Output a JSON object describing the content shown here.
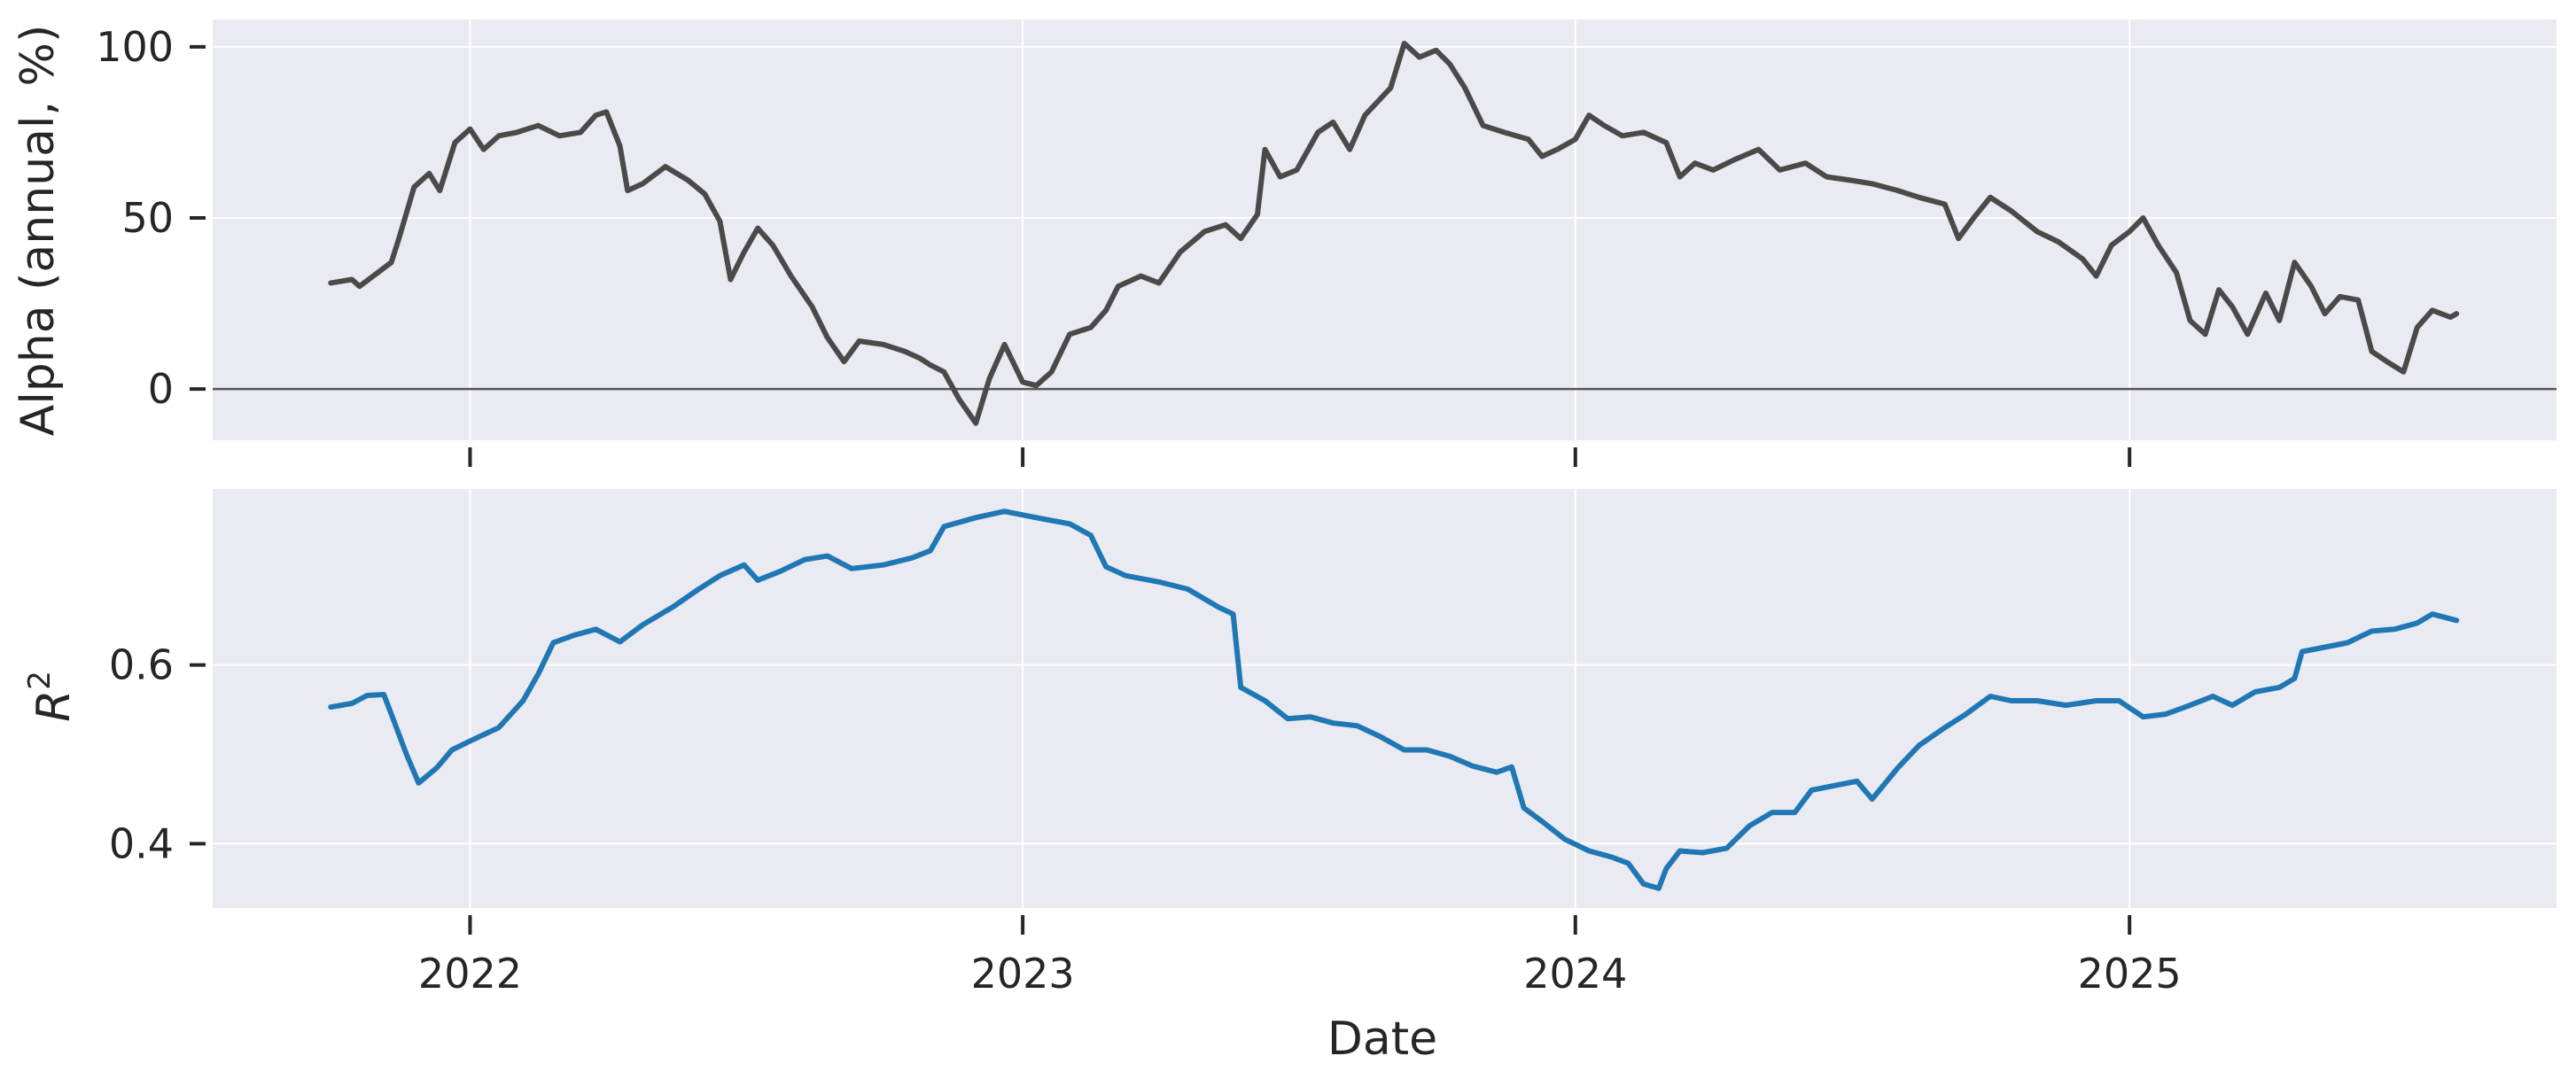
{
  "chart_data": [
    {
      "type": "line",
      "ylabel": "Alpha (annual, %)",
      "xlabel": "",
      "yticks": [
        0,
        50,
        100
      ],
      "ylim": [
        -15,
        108
      ],
      "xlim": [
        "2021-07-15",
        "2025-10-10"
      ],
      "grid": true,
      "zero_line": true,
      "colors": {
        "line": "#4a4a4a",
        "background": "#eaeaf2",
        "grid": "#ffffff",
        "zero_line": "#555555"
      },
      "series": [
        {
          "values": [
            [
              "2021-10-01",
              31
            ],
            [
              "2021-10-15",
              32
            ],
            [
              "2021-10-20",
              30
            ],
            [
              "2021-11-01",
              34
            ],
            [
              "2021-11-10",
              37
            ],
            [
              "2021-11-15",
              44
            ],
            [
              "2021-11-25",
              59
            ],
            [
              "2021-12-05",
              63
            ],
            [
              "2021-12-12",
              58
            ],
            [
              "2021-12-22",
              72
            ],
            [
              "2022-01-01",
              76
            ],
            [
              "2022-01-10",
              70
            ],
            [
              "2022-01-20",
              74
            ],
            [
              "2022-02-01",
              75
            ],
            [
              "2022-02-15",
              77
            ],
            [
              "2022-03-01",
              74
            ],
            [
              "2022-03-15",
              75
            ],
            [
              "2022-03-25",
              80
            ],
            [
              "2022-04-01",
              81
            ],
            [
              "2022-04-10",
              71
            ],
            [
              "2022-04-15",
              58
            ],
            [
              "2022-04-25",
              60
            ],
            [
              "2022-05-10",
              65
            ],
            [
              "2022-05-25",
              61
            ],
            [
              "2022-06-05",
              57
            ],
            [
              "2022-06-15",
              49
            ],
            [
              "2022-06-22",
              32
            ],
            [
              "2022-07-01",
              40
            ],
            [
              "2022-07-10",
              47
            ],
            [
              "2022-07-20",
              42
            ],
            [
              "2022-08-01",
              33
            ],
            [
              "2022-08-15",
              24
            ],
            [
              "2022-08-25",
              15
            ],
            [
              "2022-09-05",
              8
            ],
            [
              "2022-09-15",
              14
            ],
            [
              "2022-10-01",
              13
            ],
            [
              "2022-10-15",
              11
            ],
            [
              "2022-10-25",
              9
            ],
            [
              "2022-11-01",
              7
            ],
            [
              "2022-11-10",
              5
            ],
            [
              "2022-11-20",
              -3
            ],
            [
              "2022-12-01",
              -10
            ],
            [
              "2022-12-10",
              3
            ],
            [
              "2022-12-20",
              13
            ],
            [
              "2023-01-01",
              2
            ],
            [
              "2023-01-10",
              1
            ],
            [
              "2023-01-20",
              5
            ],
            [
              "2023-02-01",
              16
            ],
            [
              "2023-02-15",
              18
            ],
            [
              "2023-02-25",
              23
            ],
            [
              "2023-03-05",
              30
            ],
            [
              "2023-03-20",
              33
            ],
            [
              "2023-04-01",
              31
            ],
            [
              "2023-04-15",
              40
            ],
            [
              "2023-05-01",
              46
            ],
            [
              "2023-05-15",
              48
            ],
            [
              "2023-05-25",
              44
            ],
            [
              "2023-06-05",
              51
            ],
            [
              "2023-06-10",
              70
            ],
            [
              "2023-06-20",
              62
            ],
            [
              "2023-07-01",
              64
            ],
            [
              "2023-07-15",
              75
            ],
            [
              "2023-07-25",
              78
            ],
            [
              "2023-08-05",
              70
            ],
            [
              "2023-08-15",
              80
            ],
            [
              "2023-09-01",
              88
            ],
            [
              "2023-09-10",
              101
            ],
            [
              "2023-09-20",
              97
            ],
            [
              "2023-10-01",
              99
            ],
            [
              "2023-10-10",
              95
            ],
            [
              "2023-10-20",
              88
            ],
            [
              "2023-11-01",
              77
            ],
            [
              "2023-11-15",
              75
            ],
            [
              "2023-12-01",
              73
            ],
            [
              "2023-12-10",
              68
            ],
            [
              "2023-12-20",
              70
            ],
            [
              "2024-01-01",
              73
            ],
            [
              "2024-01-10",
              80
            ],
            [
              "2024-01-20",
              77
            ],
            [
              "2024-02-01",
              74
            ],
            [
              "2024-02-15",
              75
            ],
            [
              "2024-03-01",
              72
            ],
            [
              "2024-03-10",
              62
            ],
            [
              "2024-03-20",
              66
            ],
            [
              "2024-04-01",
              64
            ],
            [
              "2024-04-15",
              67
            ],
            [
              "2024-05-01",
              70
            ],
            [
              "2024-05-15",
              64
            ],
            [
              "2024-06-01",
              66
            ],
            [
              "2024-06-15",
              62
            ],
            [
              "2024-07-01",
              61
            ],
            [
              "2024-07-15",
              60
            ],
            [
              "2024-08-01",
              58
            ],
            [
              "2024-08-15",
              56
            ],
            [
              "2024-09-01",
              54
            ],
            [
              "2024-09-10",
              44
            ],
            [
              "2024-09-20",
              50
            ],
            [
              "2024-10-01",
              56
            ],
            [
              "2024-10-15",
              52
            ],
            [
              "2024-11-01",
              46
            ],
            [
              "2024-11-15",
              43
            ],
            [
              "2024-12-01",
              38
            ],
            [
              "2024-12-10",
              33
            ],
            [
              "2024-12-20",
              42
            ],
            [
              "2025-01-01",
              46
            ],
            [
              "2025-01-10",
              50
            ],
            [
              "2025-01-20",
              42
            ],
            [
              "2025-02-01",
              34
            ],
            [
              "2025-02-10",
              20
            ],
            [
              "2025-02-20",
              16
            ],
            [
              "2025-03-01",
              29
            ],
            [
              "2025-03-10",
              24
            ],
            [
              "2025-03-20",
              16
            ],
            [
              "2025-04-01",
              28
            ],
            [
              "2025-04-10",
              20
            ],
            [
              "2025-04-20",
              37
            ],
            [
              "2025-05-01",
              30
            ],
            [
              "2025-05-10",
              22
            ],
            [
              "2025-05-20",
              27
            ],
            [
              "2025-06-01",
              26
            ],
            [
              "2025-06-10",
              11
            ],
            [
              "2025-06-20",
              8
            ],
            [
              "2025-07-01",
              5
            ],
            [
              "2025-07-10",
              18
            ],
            [
              "2025-07-20",
              23
            ],
            [
              "2025-08-01",
              21
            ],
            [
              "2025-08-05",
              22
            ]
          ]
        }
      ]
    },
    {
      "type": "line",
      "ylabel": "R",
      "ylabel_superscript": "2",
      "xlabel": "Date",
      "yticks": [
        0.4,
        0.6
      ],
      "ylim": [
        0.328,
        0.797
      ],
      "xlim": [
        "2021-07-15",
        "2025-10-10"
      ],
      "xticks": [
        "2022-01-01",
        "2023-01-01",
        "2024-01-01",
        "2025-01-01"
      ],
      "xtick_labels": [
        "2022",
        "2023",
        "2024",
        "2025"
      ],
      "grid": true,
      "colors": {
        "line": "#1f77b4",
        "background": "#eaeaf2",
        "grid": "#ffffff"
      },
      "series": [
        {
          "values": [
            [
              "2021-10-01",
              0.553
            ],
            [
              "2021-10-15",
              0.557
            ],
            [
              "2021-10-25",
              0.566
            ],
            [
              "2021-11-05",
              0.567
            ],
            [
              "2021-11-10",
              0.545
            ],
            [
              "2021-11-20",
              0.5
            ],
            [
              "2021-11-28",
              0.468
            ],
            [
              "2021-12-10",
              0.485
            ],
            [
              "2021-12-20",
              0.505
            ],
            [
              "2022-01-01",
              0.515
            ],
            [
              "2022-01-20",
              0.53
            ],
            [
              "2022-02-05",
              0.56
            ],
            [
              "2022-02-15",
              0.59
            ],
            [
              "2022-02-25",
              0.625
            ],
            [
              "2022-03-10",
              0.633
            ],
            [
              "2022-03-25",
              0.64
            ],
            [
              "2022-04-10",
              0.626
            ],
            [
              "2022-04-25",
              0.645
            ],
            [
              "2022-05-15",
              0.665
            ],
            [
              "2022-06-01",
              0.685
            ],
            [
              "2022-06-15",
              0.7
            ],
            [
              "2022-07-01",
              0.712
            ],
            [
              "2022-07-10",
              0.695
            ],
            [
              "2022-07-25",
              0.705
            ],
            [
              "2022-08-10",
              0.718
            ],
            [
              "2022-08-25",
              0.722
            ],
            [
              "2022-09-10",
              0.708
            ],
            [
              "2022-10-01",
              0.712
            ],
            [
              "2022-10-20",
              0.72
            ],
            [
              "2022-11-01",
              0.728
            ],
            [
              "2022-11-10",
              0.755
            ],
            [
              "2022-12-01",
              0.765
            ],
            [
              "2022-12-20",
              0.772
            ],
            [
              "2023-01-10",
              0.765
            ],
            [
              "2023-02-01",
              0.758
            ],
            [
              "2023-02-15",
              0.745
            ],
            [
              "2023-02-25",
              0.71
            ],
            [
              "2023-03-10",
              0.7
            ],
            [
              "2023-04-01",
              0.693
            ],
            [
              "2023-04-20",
              0.685
            ],
            [
              "2023-05-10",
              0.665
            ],
            [
              "2023-05-20",
              0.657
            ],
            [
              "2023-05-25",
              0.575
            ],
            [
              "2023-06-10",
              0.56
            ],
            [
              "2023-06-25",
              0.54
            ],
            [
              "2023-07-10",
              0.542
            ],
            [
              "2023-07-25",
              0.535
            ],
            [
              "2023-08-10",
              0.532
            ],
            [
              "2023-08-25",
              0.52
            ],
            [
              "2023-09-10",
              0.505
            ],
            [
              "2023-09-25",
              0.505
            ],
            [
              "2023-10-10",
              0.498
            ],
            [
              "2023-10-25",
              0.487
            ],
            [
              "2023-11-10",
              0.48
            ],
            [
              "2023-11-20",
              0.486
            ],
            [
              "2023-11-28",
              0.44
            ],
            [
              "2023-12-10",
              0.425
            ],
            [
              "2023-12-25",
              0.405
            ],
            [
              "2024-01-10",
              0.392
            ],
            [
              "2024-01-25",
              0.385
            ],
            [
              "2024-02-05",
              0.378
            ],
            [
              "2024-02-15",
              0.355
            ],
            [
              "2024-02-25",
              0.35
            ],
            [
              "2024-03-01",
              0.372
            ],
            [
              "2024-03-10",
              0.392
            ],
            [
              "2024-03-25",
              0.39
            ],
            [
              "2024-04-10",
              0.395
            ],
            [
              "2024-04-25",
              0.42
            ],
            [
              "2024-05-10",
              0.435
            ],
            [
              "2024-05-25",
              0.435
            ],
            [
              "2024-06-05",
              0.46
            ],
            [
              "2024-06-20",
              0.465
            ],
            [
              "2024-07-05",
              0.47
            ],
            [
              "2024-07-15",
              0.45
            ],
            [
              "2024-08-01",
              0.485
            ],
            [
              "2024-08-15",
              0.51
            ],
            [
              "2024-09-01",
              0.53
            ],
            [
              "2024-09-15",
              0.545
            ],
            [
              "2024-10-01",
              0.565
            ],
            [
              "2024-10-15",
              0.56
            ],
            [
              "2024-11-01",
              0.56
            ],
            [
              "2024-11-20",
              0.555
            ],
            [
              "2024-12-10",
              0.56
            ],
            [
              "2024-12-25",
              0.56
            ],
            [
              "2025-01-10",
              0.542
            ],
            [
              "2025-01-25",
              0.545
            ],
            [
              "2025-02-10",
              0.555
            ],
            [
              "2025-02-25",
              0.565
            ],
            [
              "2025-03-10",
              0.555
            ],
            [
              "2025-03-25",
              0.57
            ],
            [
              "2025-04-10",
              0.575
            ],
            [
              "2025-04-20",
              0.585
            ],
            [
              "2025-04-25",
              0.615
            ],
            [
              "2025-05-10",
              0.62
            ],
            [
              "2025-05-25",
              0.625
            ],
            [
              "2025-06-10",
              0.638
            ],
            [
              "2025-06-25",
              0.64
            ],
            [
              "2025-07-10",
              0.647
            ],
            [
              "2025-07-20",
              0.657
            ],
            [
              "2025-08-05",
              0.65
            ]
          ]
        }
      ]
    }
  ]
}
